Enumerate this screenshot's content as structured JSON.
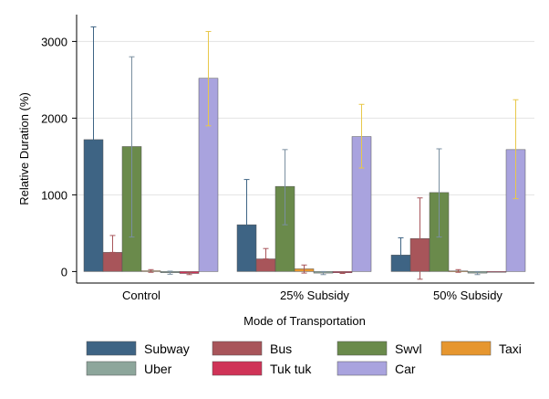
{
  "chart_data": {
    "type": "bar",
    "title": "",
    "xlabel": "Mode of Transportation",
    "ylabel": "Relative Duration (%)",
    "ylim": [
      -150,
      3350
    ],
    "yticks": [
      0,
      1000,
      2000,
      3000
    ],
    "grid": true,
    "legend_position": "bottom",
    "categories": [
      "Control",
      "25% Subsidy",
      "50% Subsidy"
    ],
    "series": [
      {
        "name": "Subway",
        "color": "#3e6484",
        "values": [
          1720,
          610,
          215
        ],
        "err_low": [
          240,
          15,
          15
        ],
        "err_high": [
          3190,
          1200,
          440
        ],
        "whisker_color": "#3e6484"
      },
      {
        "name": "Bus",
        "color": "#a8555a",
        "values": [
          250,
          165,
          430
        ],
        "err_low": [
          250,
          165,
          -100
        ],
        "err_high": [
          470,
          300,
          960
        ],
        "whisker_color": "#a8555a"
      },
      {
        "name": "Swvl",
        "color": "#6a8a4b",
        "values": [
          1630,
          1110,
          1030
        ],
        "err_low": [
          450,
          610,
          450
        ],
        "err_high": [
          2800,
          1590,
          1600
        ],
        "whisker_color": "#7a8fa0"
      },
      {
        "name": "Taxi",
        "color": "#e6962f",
        "values": [
          10,
          35,
          8
        ],
        "err_low": [
          -10,
          -20,
          -10
        ],
        "err_high": [
          25,
          85,
          25
        ],
        "whisker_color": "#a8555a"
      },
      {
        "name": "Uber",
        "color": "#8da69b",
        "values": [
          -15,
          -20,
          -20
        ],
        "err_low": [
          -35,
          -40,
          -40
        ],
        "err_high": [
          5,
          0,
          0
        ],
        "whisker_color": "#7a8fa0"
      },
      {
        "name": "Tuk tuk",
        "color": "#cf3357",
        "values": [
          -25,
          -15,
          0
        ],
        "err_low": [
          -40,
          -25,
          0
        ],
        "err_high": [
          -10,
          -5,
          0
        ],
        "whisker_color": "#a8555a"
      },
      {
        "name": "Car",
        "color": "#a9a3de",
        "values": [
          2520,
          1760,
          1590
        ],
        "err_low": [
          1900,
          1350,
          950
        ],
        "err_high": [
          3130,
          2180,
          2240
        ],
        "whisker_color": "#e8c84a"
      }
    ]
  }
}
